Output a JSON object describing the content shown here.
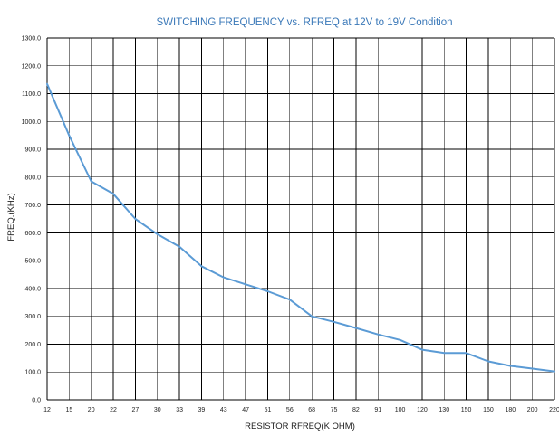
{
  "chart_data": {
    "type": "line",
    "title": "SWITCHING FREQUENCY vs. RFREQ at 12V to 19V Condition",
    "xlabel": "RESISTOR RFREQ(K OHM)",
    "ylabel": "FREQ.(KHz)",
    "categories": [
      "12",
      "15",
      "20",
      "22",
      "27",
      "30",
      "33",
      "39",
      "43",
      "47",
      "51",
      "56",
      "68",
      "75",
      "82",
      "91",
      "100",
      "120",
      "130",
      "150",
      "160",
      "180",
      "200",
      "220"
    ],
    "series": [
      {
        "values": [
          1135,
          950,
          785,
          740,
          650,
          595,
          550,
          480,
          440,
          415,
          390,
          360,
          300,
          280,
          258,
          235,
          215,
          180,
          168,
          168,
          138,
          122,
          112,
          102
        ]
      }
    ],
    "ylim": [
      0,
      1300
    ],
    "yticks": [
      "0.0",
      "100.0",
      "200.0",
      "300.0",
      "400.0",
      "500.0",
      "600.0",
      "700.0",
      "800.0",
      "900.0",
      "1000.0",
      "1100.0",
      "1200.0",
      "1300.0"
    ],
    "grid": true,
    "legend": "none",
    "colors": {
      "line": "#5b9bd5",
      "title": "#3a78b8",
      "grid": "#000000",
      "text": "#222222"
    }
  }
}
